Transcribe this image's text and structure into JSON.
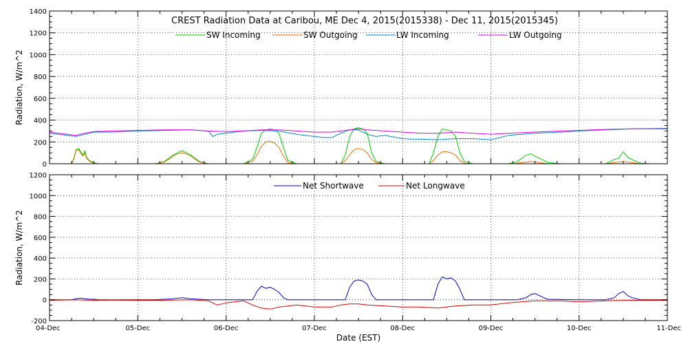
{
  "colors": {
    "sw_in": "#00cc00",
    "sw_out": "#e07000",
    "lw_in": "#0088cc",
    "lw_out": "#dd00dd",
    "net_sw": "#0000cc",
    "net_lw": "#dd0000",
    "grid": "#000000",
    "axes": "#000000"
  },
  "chart_data": [
    {
      "type": "line",
      "title": "CREST Radiation Data at Caribou, ME   Dec  4, 2015(2015338) - Dec 11, 2015(2015345)",
      "ylabel": "Radiation, W/m^2",
      "xlabel": "",
      "xlim": [
        0,
        7
      ],
      "ylim": [
        0,
        1400
      ],
      "yticks": [
        "0",
        "200",
        "400",
        "600",
        "800",
        "1000",
        "1200",
        "1400"
      ],
      "grid": true,
      "legend_position": "top",
      "series": [
        {
          "name": "SW Incoming",
          "color_key": "sw_in",
          "x": [
            0,
            0.25,
            0.28,
            0.3,
            0.33,
            0.36,
            0.38,
            0.4,
            0.42,
            0.45,
            0.5,
            0.55,
            1.0,
            1.2,
            1.3,
            1.35,
            1.4,
            1.45,
            1.5,
            1.55,
            1.6,
            1.65,
            1.7,
            1.8,
            2.0,
            2.2,
            2.3,
            2.35,
            2.4,
            2.45,
            2.5,
            2.55,
            2.6,
            2.65,
            2.7,
            2.8,
            3.0,
            3.3,
            3.35,
            3.4,
            3.45,
            3.5,
            3.55,
            3.6,
            3.65,
            3.7,
            3.8,
            4.0,
            4.3,
            4.35,
            4.4,
            4.45,
            4.5,
            4.55,
            4.6,
            4.65,
            4.7,
            4.8,
            5.0,
            5.2,
            5.3,
            5.35,
            5.4,
            5.45,
            5.5,
            5.55,
            5.6,
            5.65,
            5.8,
            6.0,
            6.3,
            6.35,
            6.4,
            6.45,
            6.5,
            6.55,
            6.6,
            6.65,
            6.7,
            6.8,
            7.0
          ],
          "y": [
            0,
            0,
            60,
            130,
            140,
            100,
            80,
            120,
            60,
            30,
            10,
            0,
            0,
            0,
            20,
            50,
            80,
            100,
            120,
            100,
            80,
            50,
            20,
            0,
            0,
            0,
            40,
            150,
            280,
            310,
            320,
            310,
            280,
            150,
            30,
            0,
            0,
            0,
            80,
            250,
            320,
            330,
            320,
            280,
            100,
            20,
            0,
            0,
            0,
            100,
            250,
            320,
            310,
            300,
            250,
            100,
            20,
            0,
            0,
            0,
            20,
            50,
            80,
            90,
            70,
            50,
            30,
            10,
            0,
            0,
            0,
            20,
            40,
            50,
            110,
            60,
            40,
            20,
            5,
            0,
            0
          ]
        },
        {
          "name": "SW Outgoing",
          "color_key": "sw_out",
          "x": [
            0,
            0.25,
            0.28,
            0.3,
            0.33,
            0.36,
            0.38,
            0.4,
            0.42,
            0.45,
            0.5,
            0.55,
            1.0,
            1.2,
            1.3,
            1.35,
            1.4,
            1.45,
            1.5,
            1.55,
            1.6,
            1.65,
            1.7,
            1.8,
            2.0,
            2.2,
            2.3,
            2.35,
            2.4,
            2.45,
            2.5,
            2.55,
            2.6,
            2.65,
            2.7,
            2.8,
            3.0,
            3.3,
            3.35,
            3.4,
            3.45,
            3.5,
            3.55,
            3.6,
            3.65,
            3.7,
            3.8,
            4.0,
            4.3,
            4.35,
            4.4,
            4.45,
            4.5,
            4.55,
            4.6,
            4.65,
            4.7,
            4.8,
            5.0,
            5.2,
            5.3,
            5.35,
            5.4,
            5.45,
            5.5,
            5.55,
            5.6,
            5.65,
            5.8,
            6.0,
            6.3,
            6.35,
            6.4,
            6.45,
            6.5,
            6.55,
            6.6,
            6.65,
            6.7,
            6.8,
            7.0
          ],
          "y": [
            0,
            0,
            50,
            120,
            130,
            90,
            70,
            100,
            50,
            25,
            5,
            0,
            0,
            0,
            15,
            40,
            70,
            90,
            100,
            90,
            70,
            40,
            15,
            0,
            0,
            0,
            20,
            80,
            160,
            200,
            205,
            190,
            150,
            70,
            10,
            0,
            0,
            0,
            30,
            80,
            130,
            140,
            130,
            100,
            40,
            10,
            0,
            0,
            0,
            30,
            80,
            110,
            110,
            100,
            80,
            30,
            5,
            0,
            0,
            0,
            5,
            10,
            15,
            20,
            15,
            10,
            5,
            0,
            0,
            0,
            0,
            5,
            10,
            15,
            20,
            15,
            10,
            5,
            0,
            0,
            0
          ]
        },
        {
          "name": "LW Incoming",
          "color_key": "lw_in",
          "x": [
            0,
            0.1,
            0.2,
            0.3,
            0.4,
            0.5,
            0.7,
            1.0,
            1.3,
            1.6,
            1.8,
            1.85,
            1.9,
            2.0,
            2.2,
            2.4,
            2.6,
            2.8,
            3.0,
            3.1,
            3.2,
            3.3,
            3.4,
            3.5,
            3.6,
            3.7,
            3.8,
            4.0,
            4.1,
            4.2,
            4.4,
            4.6,
            4.8,
            5.0,
            5.2,
            5.5,
            5.8,
            6.0,
            6.3,
            6.6,
            7.0
          ],
          "y": [
            280,
            270,
            260,
            250,
            270,
            290,
            290,
            300,
            305,
            310,
            300,
            250,
            270,
            280,
            300,
            305,
            300,
            270,
            250,
            240,
            240,
            280,
            310,
            310,
            270,
            250,
            260,
            230,
            225,
            225,
            220,
            230,
            230,
            220,
            260,
            280,
            290,
            300,
            310,
            320,
            325
          ]
        },
        {
          "name": "LW Outgoing",
          "color_key": "lw_out",
          "x": [
            0,
            0.1,
            0.2,
            0.3,
            0.4,
            0.5,
            0.7,
            1.0,
            1.3,
            1.6,
            1.8,
            2.0,
            2.2,
            2.4,
            2.6,
            2.8,
            3.0,
            3.2,
            3.4,
            3.5,
            3.6,
            3.8,
            4.0,
            4.2,
            4.4,
            4.6,
            4.8,
            5.0,
            5.2,
            5.5,
            5.8,
            6.0,
            6.3,
            6.6,
            7.0
          ],
          "y": [
            290,
            280,
            270,
            260,
            280,
            295,
            300,
            305,
            310,
            310,
            300,
            295,
            300,
            310,
            310,
            300,
            290,
            290,
            310,
            320,
            310,
            300,
            290,
            280,
            280,
            290,
            280,
            270,
            280,
            290,
            300,
            305,
            315,
            320,
            320
          ]
        }
      ]
    },
    {
      "type": "line",
      "title": "",
      "ylabel": "Radiation, W/m^2",
      "xlabel": "Date (EST)",
      "xlim": [
        0,
        7
      ],
      "ylim": [
        -200,
        1200
      ],
      "yticks": [
        "-200",
        "0",
        "200",
        "400",
        "600",
        "800",
        "1000",
        "1200"
      ],
      "xticks": [
        "04-Dec",
        "05-Dec",
        "06-Dec",
        "07-Dec",
        "08-Dec",
        "09-Dec",
        "10-Dec",
        "11-Dec"
      ],
      "grid": true,
      "legend_position": "top",
      "series": [
        {
          "name": "Net Shortwave",
          "color_key": "net_sw",
          "x": [
            0,
            0.25,
            0.3,
            0.35,
            0.4,
            0.45,
            0.5,
            0.55,
            1.0,
            1.2,
            1.3,
            1.4,
            1.5,
            1.6,
            1.7,
            1.8,
            2.0,
            2.3,
            2.35,
            2.4,
            2.45,
            2.5,
            2.55,
            2.6,
            2.65,
            2.7,
            3.0,
            3.35,
            3.4,
            3.45,
            3.5,
            3.55,
            3.6,
            3.65,
            3.7,
            4.0,
            4.35,
            4.4,
            4.45,
            4.5,
            4.55,
            4.6,
            4.65,
            4.7,
            5.0,
            5.3,
            5.4,
            5.45,
            5.5,
            5.55,
            5.6,
            5.65,
            6.0,
            6.3,
            6.4,
            6.45,
            6.5,
            6.55,
            6.6,
            6.7,
            7.0
          ],
          "y": [
            0,
            0,
            10,
            15,
            10,
            5,
            5,
            0,
            0,
            0,
            5,
            10,
            20,
            10,
            5,
            0,
            0,
            0,
            80,
            130,
            110,
            120,
            100,
            70,
            20,
            0,
            0,
            0,
            120,
            180,
            190,
            180,
            150,
            50,
            0,
            0,
            0,
            150,
            220,
            200,
            210,
            180,
            100,
            0,
            0,
            0,
            20,
            50,
            60,
            40,
            20,
            5,
            0,
            0,
            20,
            60,
            80,
            40,
            20,
            0,
            0
          ]
        },
        {
          "name": "Net Longwave",
          "color_key": "net_lw",
          "x": [
            0,
            0.3,
            0.5,
            0.7,
            1.0,
            1.3,
            1.6,
            1.8,
            1.9,
            2.0,
            2.2,
            2.3,
            2.4,
            2.5,
            2.6,
            2.8,
            3.0,
            3.2,
            3.3,
            3.4,
            3.5,
            3.6,
            3.8,
            4.0,
            4.2,
            4.4,
            4.6,
            4.8,
            5.0,
            5.2,
            5.5,
            5.8,
            6.0,
            6.3,
            6.6,
            7.0
          ],
          "y": [
            -5,
            0,
            -5,
            -3,
            -5,
            -5,
            0,
            -10,
            -50,
            -30,
            -10,
            -50,
            -80,
            -90,
            -70,
            -50,
            -70,
            -70,
            -50,
            -40,
            -40,
            -50,
            -60,
            -70,
            -70,
            -80,
            -60,
            -50,
            -50,
            -30,
            -10,
            -10,
            -20,
            -10,
            -5,
            -5
          ]
        }
      ]
    }
  ]
}
